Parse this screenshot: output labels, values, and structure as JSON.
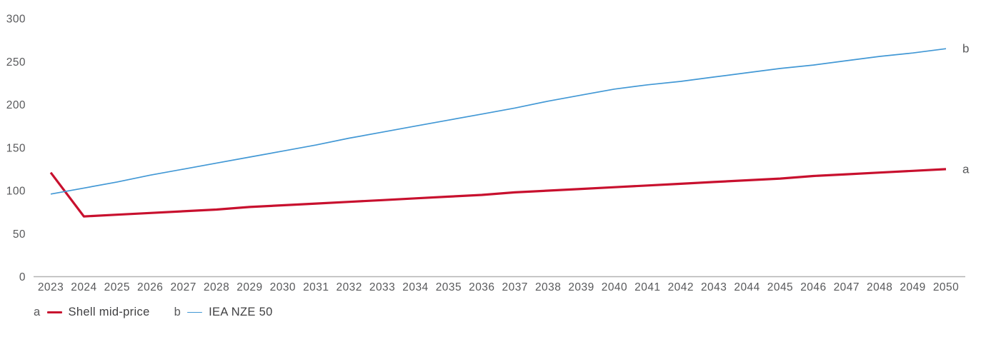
{
  "chart_data": {
    "type": "line",
    "title": "",
    "xlabel": "",
    "ylabel": "",
    "x": [
      2023,
      2024,
      2025,
      2026,
      2027,
      2028,
      2029,
      2030,
      2031,
      2032,
      2033,
      2034,
      2035,
      2036,
      2037,
      2038,
      2039,
      2040,
      2041,
      2042,
      2043,
      2044,
      2045,
      2046,
      2047,
      2048,
      2049,
      2050
    ],
    "ylim": [
      0,
      300
    ],
    "yticks": [
      0,
      50,
      100,
      150,
      200,
      250,
      300
    ],
    "grid": false,
    "legend_position": "bottom-left",
    "series": [
      {
        "key": "a",
        "name": "Shell mid-price",
        "end_label": "a",
        "color": "#c8102e",
        "stroke_width": 3.2,
        "values": [
          121,
          70,
          72,
          74,
          76,
          78,
          81,
          83,
          85,
          87,
          89,
          91,
          93,
          95,
          98,
          100,
          102,
          104,
          106,
          108,
          110,
          112,
          114,
          117,
          119,
          121,
          123,
          125
        ]
      },
      {
        "key": "b",
        "name": "IEA NZE 50",
        "end_label": "b",
        "color": "#4298d5",
        "stroke_width": 1.7,
        "values": [
          96,
          103,
          110,
          118,
          125,
          132,
          139,
          146,
          153,
          161,
          168,
          175,
          182,
          189,
          196,
          204,
          211,
          218,
          223,
          227,
          232,
          237,
          242,
          246,
          251,
          256,
          260,
          265
        ]
      }
    ]
  },
  "legend": {
    "items": [
      {
        "key": "a",
        "label": "Shell mid-price"
      },
      {
        "key": "b",
        "label": "IEA NZE 50"
      }
    ]
  },
  "colors": {
    "axis_line": "#b3b3b3",
    "tick_text": "#58595b",
    "legend_text": "#404042",
    "background": "#ffffff"
  }
}
